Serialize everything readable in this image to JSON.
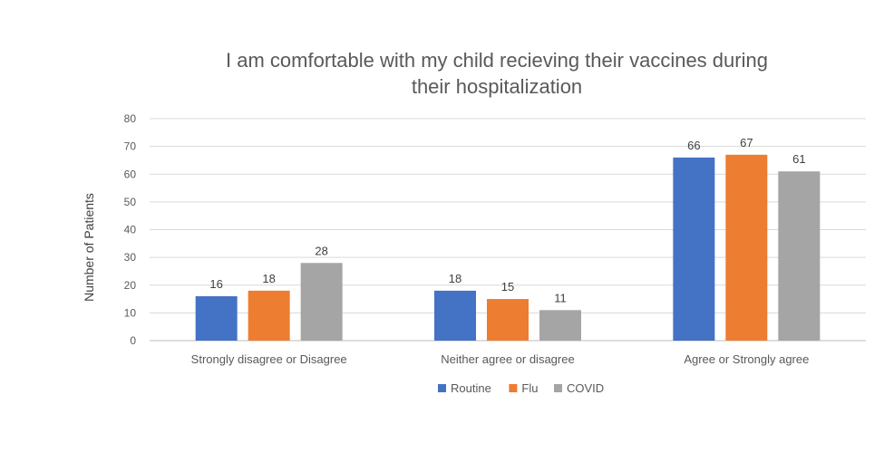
{
  "chart_data": {
    "type": "bar",
    "title": [
      "I am comfortable with my child recieving their vaccines during",
      "their hospitalization"
    ],
    "xlabel": "",
    "ylabel": "Number of Patients",
    "ylim": [
      0,
      80
    ],
    "yticks": [
      0,
      10,
      20,
      30,
      40,
      50,
      60,
      70,
      80
    ],
    "grid": true,
    "legend_position": "bottom",
    "categories": [
      "Strongly disagree or Disagree",
      "Neither agree or disagree",
      "Agree or Strongly agree"
    ],
    "series": [
      {
        "name": "Routine",
        "color": "#4472C4",
        "values": [
          16,
          18,
          66
        ]
      },
      {
        "name": "Flu",
        "color": "#ED7D31",
        "values": [
          18,
          15,
          67
        ]
      },
      {
        "name": "COVID",
        "color": "#A5A5A5",
        "values": [
          28,
          11,
          61
        ]
      }
    ]
  }
}
